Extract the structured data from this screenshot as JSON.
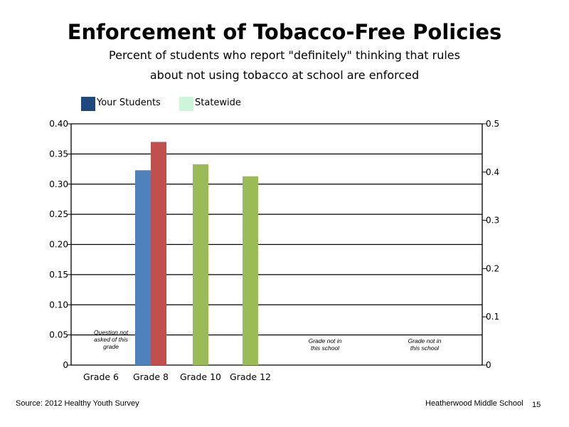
{
  "chart_data": {
    "type": "bar",
    "title": "Enforcement of Tobacco-Free Policies",
    "subtitle_lines": [
      "Percent of students who report \"definitely\" thinking that rules",
      "about not using tobacco at school are enforced"
    ],
    "categories": [
      "Grade 6",
      "Grade 8",
      "Grade 10",
      "Grade 12"
    ],
    "legend": [
      {
        "label": "Your Students",
        "color": "#1f497d"
      },
      {
        "label": "Statewide",
        "color": "#ccf5d9"
      }
    ],
    "bars": [
      {
        "category": "Grade 8",
        "value": 0.323,
        "color": "#4f81bd"
      },
      {
        "category": "Grade 8",
        "value": 0.37,
        "color": "#c0504d"
      },
      {
        "category": "Grade 10",
        "value": 0.333,
        "color": "#9bbb59"
      },
      {
        "category": "Grade 12",
        "value": 0.313,
        "color": "#9bbb59"
      }
    ],
    "y_left": {
      "ylim": [
        0,
        0.4
      ],
      "ticks": [
        "0",
        "0.05",
        "0.10",
        "0.15",
        "0.20",
        "0.25",
        "0.30",
        "0.35",
        "0.40"
      ]
    },
    "y_right": {
      "ylim": [
        0,
        0.5
      ],
      "ticks": [
        "0",
        "0.1",
        "0.2",
        "0.3",
        "0.4",
        "0.5"
      ]
    },
    "annotations": [
      {
        "category": "Grade 6",
        "lines": [
          "Question not",
          "asked of this",
          "grade"
        ]
      },
      {
        "category": "slot5",
        "lines": [
          "Grade not in",
          "this school"
        ]
      },
      {
        "category": "slot6",
        "lines": [
          "Grade not in",
          "this school"
        ]
      }
    ],
    "grid": true
  },
  "footer": {
    "source": "Source: 2012 Healthy Youth Survey",
    "school": "Heatherwood Middle  School",
    "page": "15"
  }
}
